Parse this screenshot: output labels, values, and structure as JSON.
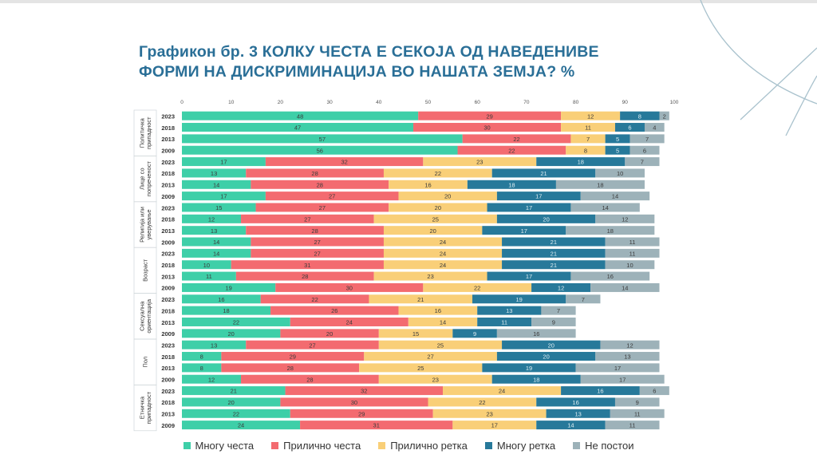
{
  "title_lines": [
    "Графикон бр. 3 КОЛКУ ЧЕСТА Е СЕКОЈА ОД НАВЕДЕНИВЕ",
    "ФОРМИ НА ДИСКРИМИНАЦИЈА ВО НАШАТА ЗЕМЈА? %"
  ],
  "colors": {
    "accent_title": "#2a6f97",
    "decoration": "#9fb9c6",
    "series": [
      "#3ecfa8",
      "#f36b70",
      "#f9cf78",
      "#27799a",
      "#9db2b9"
    ],
    "label_dark": "#2b3a40"
  },
  "chart_data": {
    "type": "bar",
    "orientation": "horizontal",
    "stacked": true,
    "xlim": [
      0,
      100
    ],
    "xticks": [
      0,
      10,
      20,
      30,
      40,
      50,
      60,
      70,
      80,
      90,
      100
    ],
    "grid": false,
    "legend_position": "bottom",
    "series_names": [
      "Многу честа",
      "Прилично честа",
      "Прилично ретка",
      "Многу ретка",
      "Не постои"
    ],
    "groups": [
      {
        "name": "Политичка припадност",
        "rows": [
          {
            "year": "2023",
            "values": [
              48,
              29,
              12,
              8,
              2
            ]
          },
          {
            "year": "2018",
            "values": [
              47,
              30,
              11,
              6,
              4
            ]
          },
          {
            "year": "2013",
            "values": [
              57,
              22,
              7,
              5,
              7
            ]
          },
          {
            "year": "2009",
            "values": [
              56,
              22,
              8,
              5,
              6
            ]
          }
        ]
      },
      {
        "name": "Лице со попреченост",
        "rows": [
          {
            "year": "2023",
            "values": [
              17,
              32,
              23,
              18,
              7
            ]
          },
          {
            "year": "2018",
            "values": [
              13,
              28,
              22,
              21,
              10
            ]
          },
          {
            "year": "2013",
            "values": [
              14,
              28,
              16,
              18,
              18
            ]
          },
          {
            "year": "2009",
            "values": [
              17,
              27,
              20,
              17,
              14
            ]
          }
        ]
      },
      {
        "name": "Религија или уверување",
        "rows": [
          {
            "year": "2023",
            "values": [
              15,
              27,
              20,
              17,
              14
            ]
          },
          {
            "year": "2018",
            "values": [
              12,
              27,
              25,
              20,
              12
            ]
          },
          {
            "year": "2013",
            "values": [
              13,
              28,
              20,
              17,
              18
            ]
          },
          {
            "year": "2009",
            "values": [
              14,
              27,
              24,
              21,
              11
            ]
          }
        ]
      },
      {
        "name": "Возраст",
        "rows": [
          {
            "year": "2023",
            "values": [
              14,
              27,
              24,
              21,
              11
            ]
          },
          {
            "year": "2018",
            "values": [
              10,
              31,
              24,
              21,
              10
            ]
          },
          {
            "year": "2013",
            "values": [
              11,
              28,
              23,
              17,
              16
            ]
          },
          {
            "year": "2009",
            "values": [
              19,
              30,
              22,
              12,
              14
            ]
          }
        ]
      },
      {
        "name": "Сексуална ориентација",
        "rows": [
          {
            "year": "2023",
            "values": [
              16,
              22,
              21,
              19,
              7
            ]
          },
          {
            "year": "2018",
            "values": [
              18,
              26,
              16,
              13,
              7
            ]
          },
          {
            "year": "2013",
            "values": [
              22,
              24,
              14,
              11,
              9
            ]
          },
          {
            "year": "2009",
            "values": [
              20,
              20,
              15,
              9,
              16
            ]
          }
        ]
      },
      {
        "name": "Пол",
        "rows": [
          {
            "year": "2023",
            "values": [
              13,
              27,
              25,
              20,
              12
            ]
          },
          {
            "year": "2018",
            "values": [
              8,
              29,
              27,
              20,
              13
            ]
          },
          {
            "year": "2013",
            "values": [
              8,
              28,
              25,
              19,
              17
            ]
          },
          {
            "year": "2009",
            "values": [
              12,
              28,
              23,
              18,
              17
            ]
          }
        ]
      },
      {
        "name": "Етничка припадност",
        "rows": [
          {
            "year": "2023",
            "values": [
              21,
              32,
              24,
              16,
              6
            ]
          },
          {
            "year": "2018",
            "values": [
              20,
              30,
              22,
              16,
              9
            ]
          },
          {
            "year": "2013",
            "values": [
              22,
              29,
              23,
              13,
              11
            ]
          },
          {
            "year": "2009",
            "values": [
              24,
              31,
              17,
              14,
              11
            ]
          }
        ]
      }
    ]
  }
}
